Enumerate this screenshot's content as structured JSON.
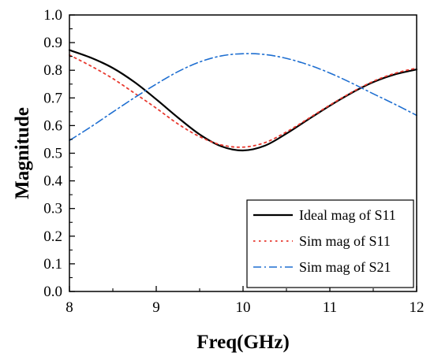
{
  "chart_data": {
    "type": "line",
    "title": "",
    "xlabel": "Freq(GHz)",
    "ylabel": "Magnitude",
    "xlim": [
      8,
      12
    ],
    "ylim": [
      0,
      1.0
    ],
    "xticks": [
      "8",
      "9",
      "10",
      "11",
      "12"
    ],
    "yticks": [
      "0.0",
      "0.1",
      "0.2",
      "0.3",
      "0.4",
      "0.5",
      "0.6",
      "0.7",
      "0.8",
      "0.9",
      "1.0"
    ],
    "grid": false,
    "legend_position": "bottom-right",
    "series": [
      {
        "name": "Ideal mag of S11",
        "color": "#000000",
        "dash": "solid",
        "x": [
          8.0,
          8.25,
          8.5,
          8.75,
          9.0,
          9.25,
          9.5,
          9.75,
          10.0,
          10.25,
          10.5,
          10.75,
          11.0,
          11.25,
          11.5,
          11.75,
          12.0
        ],
        "y": [
          0.873,
          0.845,
          0.808,
          0.757,
          0.695,
          0.629,
          0.568,
          0.525,
          0.51,
          0.527,
          0.571,
          0.622,
          0.672,
          0.718,
          0.757,
          0.785,
          0.803
        ]
      },
      {
        "name": "Sim mag of S11",
        "color": "#e8392f",
        "dash": "dotted",
        "x": [
          8.0,
          8.25,
          8.5,
          8.75,
          9.0,
          9.25,
          9.5,
          9.75,
          10.0,
          10.25,
          10.5,
          10.75,
          11.0,
          11.25,
          11.5,
          11.75,
          12.0
        ],
        "y": [
          0.855,
          0.815,
          0.77,
          0.717,
          0.663,
          0.606,
          0.56,
          0.53,
          0.522,
          0.538,
          0.577,
          0.625,
          0.674,
          0.72,
          0.76,
          0.789,
          0.808
        ]
      },
      {
        "name": "Sim mag of S21",
        "color": "#1f6fd1",
        "dash": "dashdot",
        "x": [
          8.0,
          8.25,
          8.5,
          8.75,
          9.0,
          9.25,
          9.5,
          9.75,
          10.0,
          10.25,
          10.5,
          10.75,
          11.0,
          11.25,
          11.5,
          11.75,
          12.0
        ],
        "y": [
          0.546,
          0.596,
          0.649,
          0.701,
          0.75,
          0.795,
          0.83,
          0.852,
          0.86,
          0.857,
          0.843,
          0.82,
          0.79,
          0.754,
          0.715,
          0.677,
          0.637
        ]
      }
    ]
  }
}
